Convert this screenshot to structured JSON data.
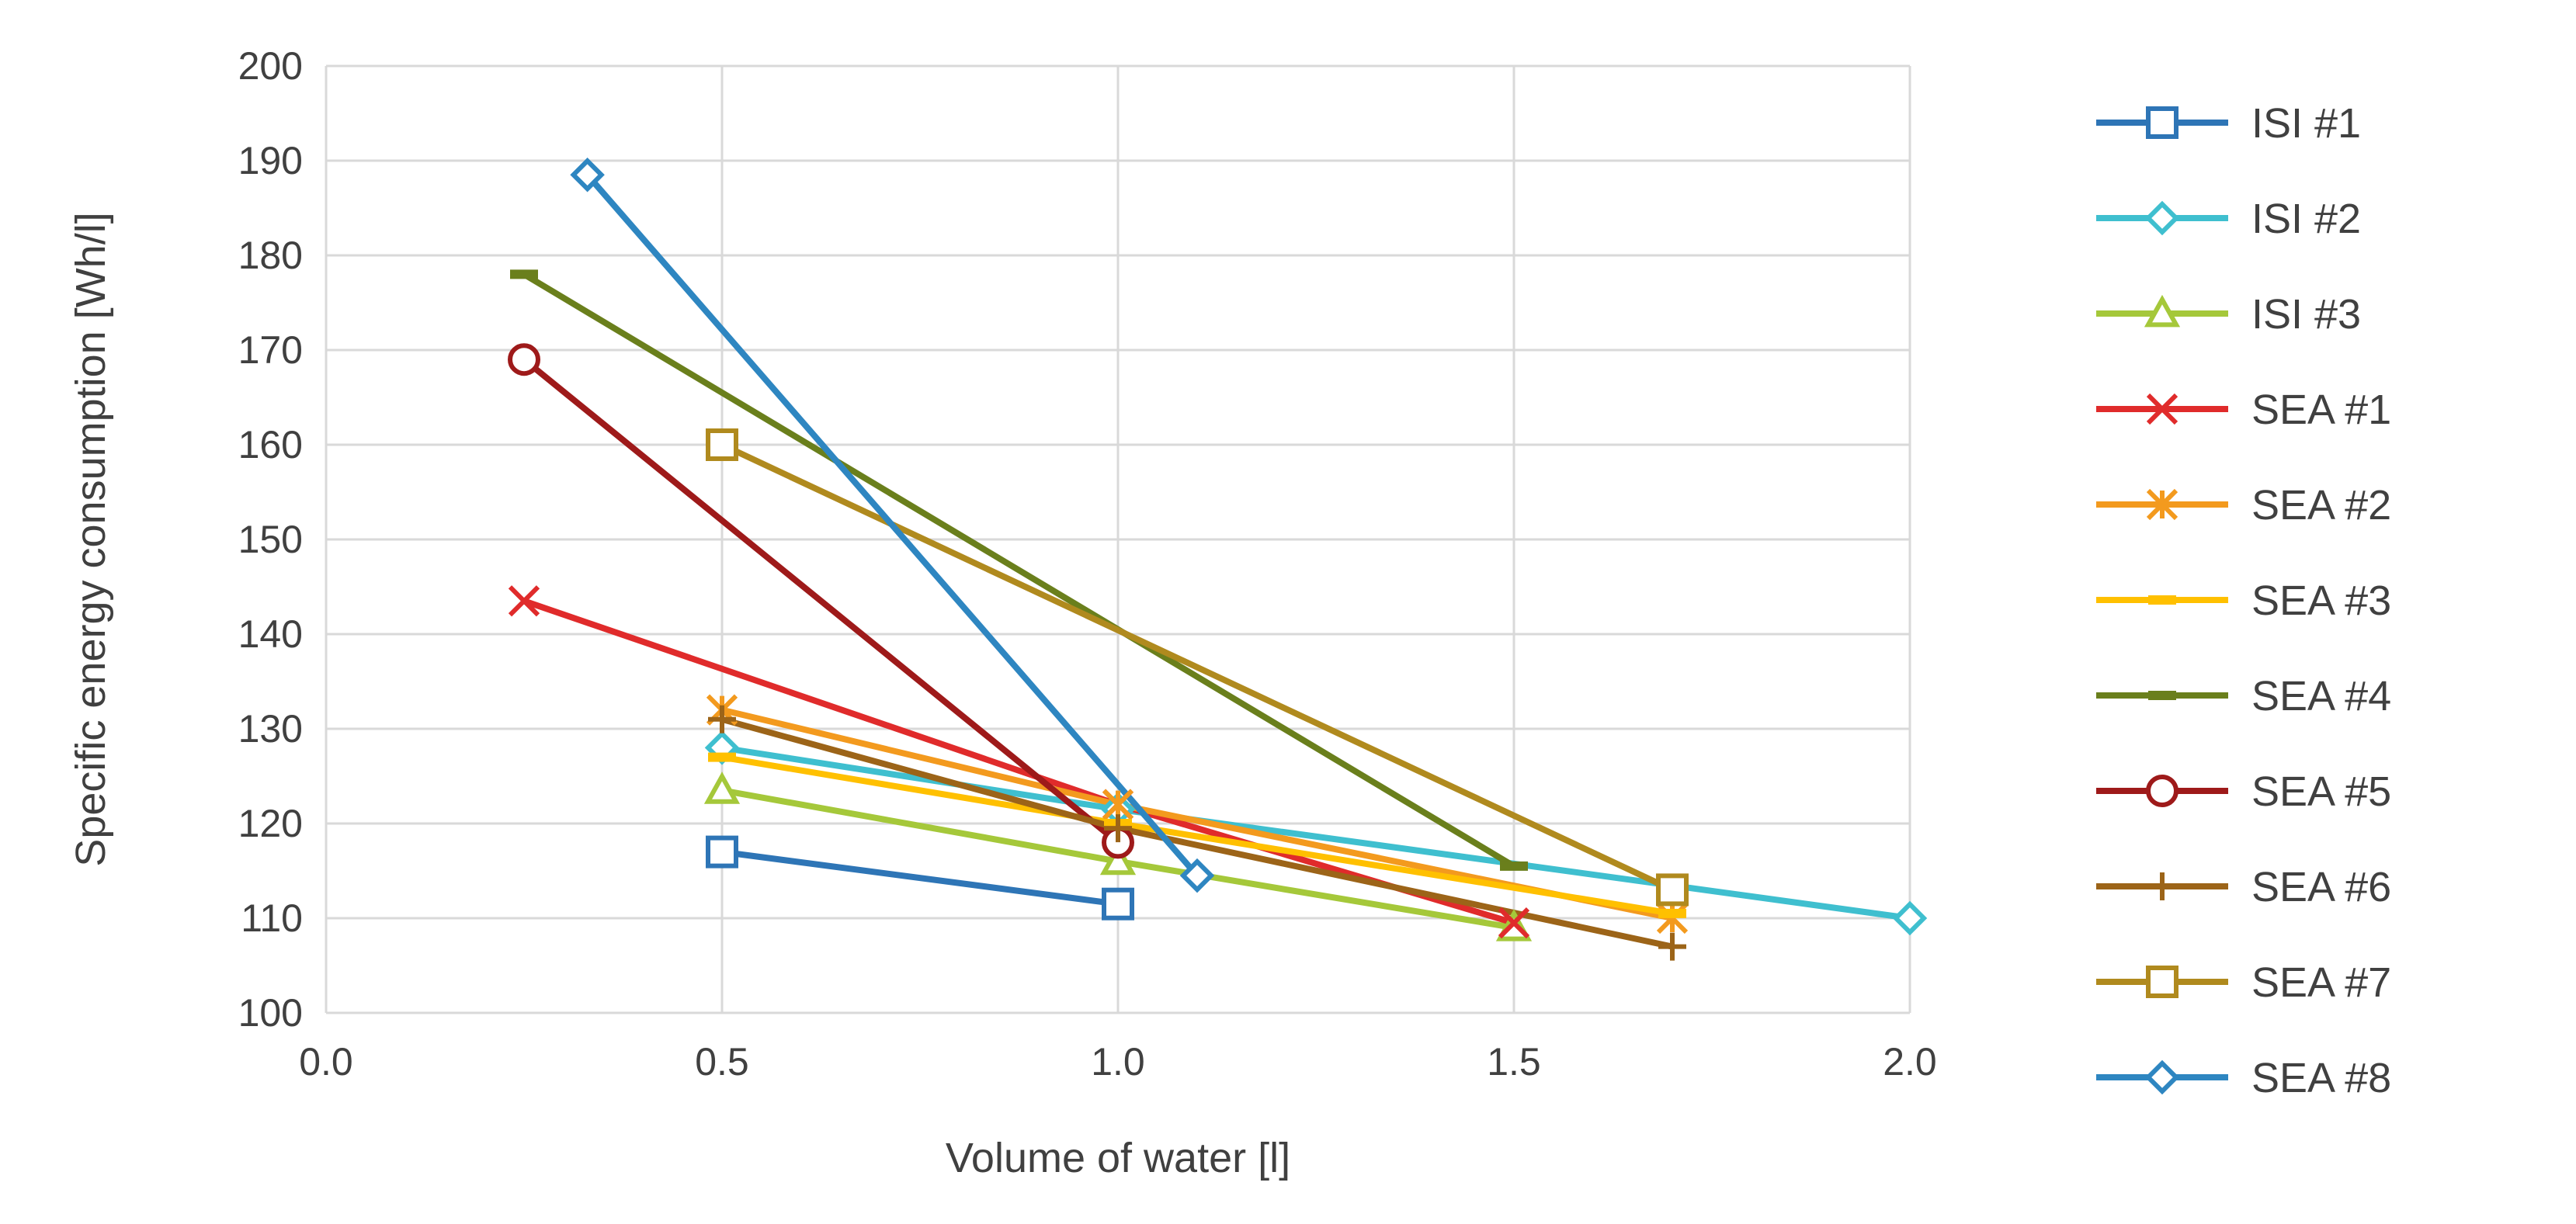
{
  "chart_data": {
    "type": "line",
    "title": "",
    "xlabel": "Volume  of water [l]",
    "ylabel": "Specific energy consumption [Wh/l]",
    "xlim": [
      0,
      2
    ],
    "ylim": [
      100,
      200
    ],
    "xticks": [
      "0.0",
      "0.5",
      "1.0",
      "1.5",
      "2.0"
    ],
    "yticks": [
      "100",
      "110",
      "120",
      "130",
      "140",
      "150",
      "160",
      "170",
      "180",
      "190",
      "200"
    ],
    "grid": true,
    "legend": "right",
    "series": [
      {
        "name": "ISI #1",
        "color": "#2e75b6",
        "marker": "square",
        "x": [
          0.5,
          1.0
        ],
        "y": [
          117.0,
          111.5
        ]
      },
      {
        "name": "ISI #2",
        "color": "#3fbfcf",
        "marker": "diamond",
        "x": [
          0.5,
          1.0,
          2.0
        ],
        "y": [
          128.0,
          121.5,
          110.0
        ]
      },
      {
        "name": "ISI #3",
        "color": "#a5c83a",
        "marker": "triangle",
        "x": [
          0.5,
          1.0,
          1.5
        ],
        "y": [
          123.5,
          116.0,
          109.0
        ]
      },
      {
        "name": "SEA #1",
        "color": "#e02b2b",
        "marker": "x",
        "x": [
          0.25,
          1.0,
          1.5
        ],
        "y": [
          143.5,
          122.0,
          109.5
        ]
      },
      {
        "name": "SEA #2",
        "color": "#f39a1e",
        "marker": "star",
        "x": [
          0.5,
          1.0,
          1.7
        ],
        "y": [
          132.0,
          122.0,
          110.0
        ]
      },
      {
        "name": "SEA #3",
        "color": "#ffc000",
        "marker": "dash",
        "x": [
          0.5,
          1.0,
          1.7
        ],
        "y": [
          127.0,
          120.0,
          110.5
        ]
      },
      {
        "name": "SEA #4",
        "color": "#6a7f1c",
        "marker": "dash",
        "x": [
          0.25,
          1.5
        ],
        "y": [
          178.0,
          115.5
        ]
      },
      {
        "name": "SEA #5",
        "color": "#9e1a1a",
        "marker": "circle",
        "x": [
          0.25,
          1.0
        ],
        "y": [
          169.0,
          118.0
        ]
      },
      {
        "name": "SEA #6",
        "color": "#9c6418",
        "marker": "plus",
        "x": [
          0.5,
          1.0,
          1.7
        ],
        "y": [
          131.0,
          119.5,
          107.0
        ]
      },
      {
        "name": "SEA #7",
        "color": "#b08a1e",
        "marker": "square",
        "x": [
          0.5,
          1.7
        ],
        "y": [
          160.0,
          113.0
        ]
      },
      {
        "name": "SEA #8",
        "color": "#2e86c1",
        "marker": "diamond",
        "x": [
          0.33,
          1.1
        ],
        "y": [
          188.5,
          114.5
        ]
      }
    ]
  }
}
